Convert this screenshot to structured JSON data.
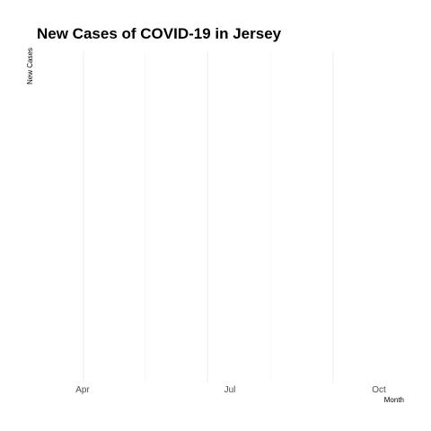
{
  "chart_data": {
    "type": "line",
    "title": "New Cases of COVID-19 in Jersey",
    "xlabel": "Month",
    "ylabel": "New Cases",
    "x_ticks": [
      "Apr",
      "Jul",
      "Oct"
    ],
    "x_range": [
      "2020-03-01",
      "2020-11-30"
    ],
    "series": [],
    "grid": true,
    "legend": "none"
  }
}
